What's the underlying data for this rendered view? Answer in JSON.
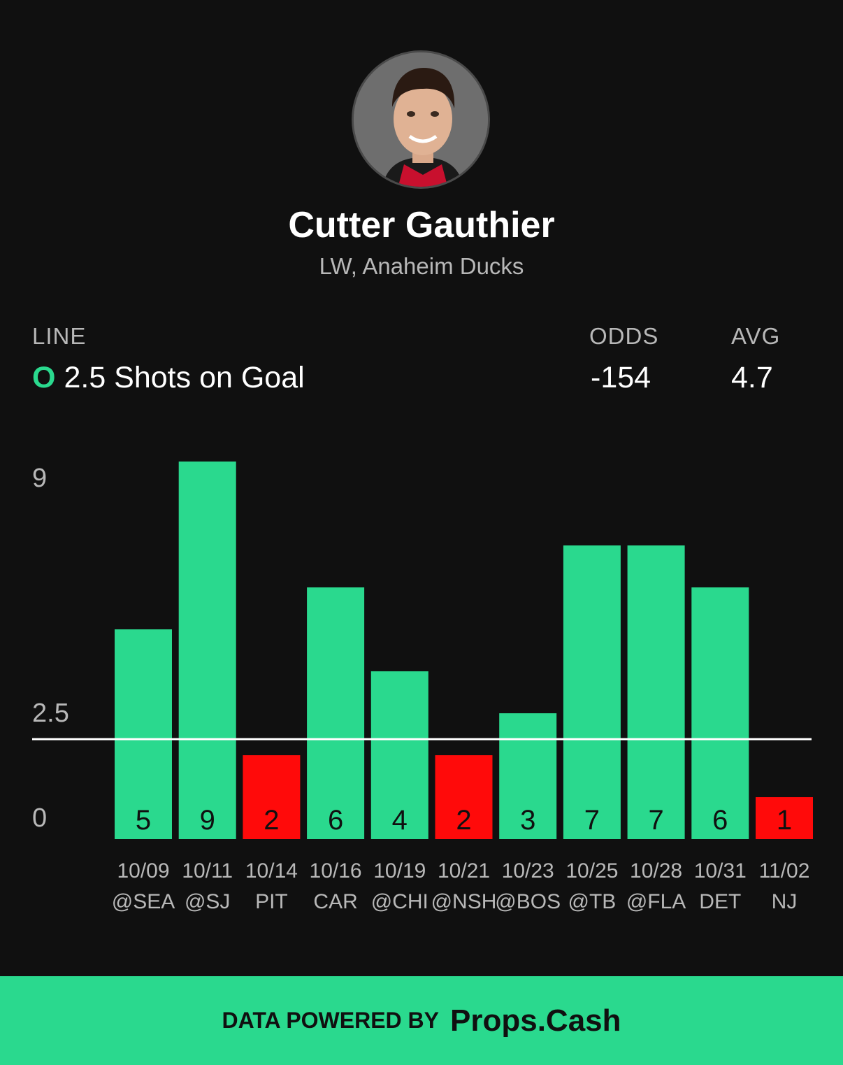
{
  "player": {
    "name": "Cutter Gauthier",
    "subtitle": "LW, Anaheim Ducks",
    "photo_icon": "player-headshot"
  },
  "stats": {
    "line_header": "LINE",
    "odds_header": "ODDS",
    "avg_header": "AVG",
    "over_under": "O",
    "line_value": "2.5 Shots on Goal",
    "odds_value": "-154",
    "avg_value": "4.7"
  },
  "colors": {
    "over": "#2ad98e",
    "under": "#ff0a0a",
    "background": "#101010"
  },
  "chart_data": {
    "type": "bar",
    "categories": [
      "10/09",
      "10/11",
      "10/14",
      "10/16",
      "10/19",
      "10/21",
      "10/23",
      "10/25",
      "10/28",
      "10/31",
      "11/02"
    ],
    "opponents": [
      "@SEA",
      "@SJ",
      "PIT",
      "CAR",
      "@CHI",
      "@NSH",
      "@BOS",
      "@TB",
      "@FLA",
      "DET",
      "NJ"
    ],
    "values": [
      5,
      9,
      2,
      6,
      4,
      2,
      3,
      7,
      7,
      6,
      1
    ],
    "ylim": [
      0,
      9
    ],
    "yticks": [
      0,
      2.5,
      9
    ],
    "reference_line": 2.5
  },
  "footer": {
    "prefix": "DATA POWERED BY",
    "brand": "Props.Cash"
  }
}
